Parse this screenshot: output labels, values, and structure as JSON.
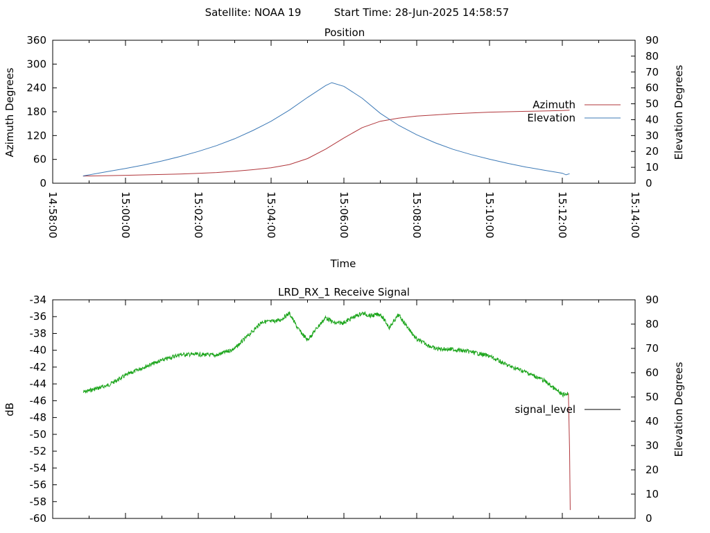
{
  "header": {
    "satellite": "Satellite: NOAA 19",
    "start_time": "Start Time: 28-Jun-2025 14:58:57"
  },
  "colors": {
    "azimuth": "#b0353a",
    "elevation": "#3c79b6",
    "signal": "#1ca51c",
    "drop": "#b0353a"
  },
  "chart_data": [
    {
      "type": "line",
      "title": "Position",
      "xlabel": "Time",
      "ylabel": "Azimuth Degrees",
      "y2label": "Elevation Degrees",
      "xlim": [
        "14:58:00",
        "15:14:00"
      ],
      "xticks": [
        "14:58:00",
        "15:00:00",
        "15:02:00",
        "15:04:00",
        "15:06:00",
        "15:08:00",
        "15:10:00",
        "15:12:00",
        "15:14:00"
      ],
      "ylim": [
        0,
        360
      ],
      "yticks": [
        "0",
        "60",
        "120",
        "180",
        "240",
        "300",
        "360"
      ],
      "y2lim": [
        0,
        90
      ],
      "y2ticks": [
        "0",
        "10",
        "20",
        "30",
        "40",
        "50",
        "60",
        "70",
        "80",
        "90"
      ],
      "legend_position": "right",
      "grid": false,
      "series": [
        {
          "name": "Azimuth",
          "axis": "left",
          "x": [
            "14:58:50",
            "14:59:30",
            "15:00:00",
            "15:00:30",
            "15:01:00",
            "15:01:30",
            "15:02:00",
            "15:02:30",
            "15:03:00",
            "15:03:30",
            "15:04:00",
            "15:04:30",
            "15:05:00",
            "15:05:30",
            "15:06:00",
            "15:06:30",
            "15:07:00",
            "15:07:30",
            "15:08:00",
            "15:08:30",
            "15:09:00",
            "15:09:30",
            "15:10:00",
            "15:10:30",
            "15:11:00",
            "15:11:30",
            "15:12:00",
            "15:12:12"
          ],
          "values": [
            18,
            19,
            20,
            21,
            22,
            23,
            25,
            27,
            30,
            34,
            39,
            47,
            62,
            86,
            114,
            140,
            156,
            164,
            169,
            172,
            175,
            177,
            179,
            180,
            181,
            182,
            183,
            184
          ]
        },
        {
          "name": "Elevation",
          "axis": "right",
          "x": [
            "14:58:50",
            "14:59:30",
            "15:00:00",
            "15:00:30",
            "15:01:00",
            "15:01:30",
            "15:02:00",
            "15:02:30",
            "15:03:00",
            "15:03:30",
            "15:04:00",
            "15:04:30",
            "15:05:00",
            "15:05:30",
            "15:05:40",
            "15:06:00",
            "15:06:30",
            "15:07:00",
            "15:07:30",
            "15:08:00",
            "15:08:30",
            "15:09:00",
            "15:09:30",
            "15:10:00",
            "15:10:30",
            "15:11:00",
            "15:11:30",
            "15:12:00",
            "15:12:06",
            "15:12:12"
          ],
          "values": [
            4.6,
            7.3,
            9.3,
            11.5,
            14.0,
            16.8,
            20.0,
            23.7,
            28.0,
            33.2,
            39.0,
            46.0,
            54.0,
            61.5,
            63.3,
            61.0,
            53.5,
            44.0,
            36.5,
            30.5,
            25.5,
            21.3,
            18.0,
            15.1,
            12.5,
            10.2,
            8.2,
            6.3,
            5.3,
            6.0
          ]
        }
      ]
    },
    {
      "type": "line",
      "title": "LRD_RX_1 Receive Signal",
      "ylabel": "dB",
      "y2label": "Elevation Degrees",
      "ylim": [
        -60,
        -34
      ],
      "yticks": [
        "-34",
        "-36",
        "-38",
        "-40",
        "-42",
        "-44",
        "-46",
        "-48",
        "-50",
        "-52",
        "-54",
        "-56",
        "-58",
        "-60"
      ],
      "y2lim": [
        0,
        90
      ],
      "y2ticks": [
        "0",
        "10",
        "20",
        "30",
        "40",
        "50",
        "60",
        "70",
        "80",
        "90"
      ],
      "xlim": [
        "14:58:00",
        "15:14:00"
      ],
      "legend_position": "right",
      "grid": false,
      "series": [
        {
          "name": "signal_level",
          "axis": "left",
          "x": [
            "14:58:50",
            "14:59:30",
            "15:00:00",
            "15:00:30",
            "15:01:00",
            "15:01:30",
            "15:02:00",
            "15:02:30",
            "15:03:00",
            "15:03:30",
            "15:03:45",
            "15:04:00",
            "15:04:15",
            "15:04:30",
            "15:04:45",
            "15:05:00",
            "15:05:15",
            "15:05:30",
            "15:05:45",
            "15:06:00",
            "15:06:15",
            "15:06:30",
            "15:06:45",
            "15:07:00",
            "15:07:15",
            "15:07:30",
            "15:08:00",
            "15:08:30",
            "15:09:00",
            "15:09:30",
            "15:10:00",
            "15:10:30",
            "15:11:00",
            "15:11:30",
            "15:12:00",
            "15:12:10"
          ],
          "values": [
            -45.0,
            -44.2,
            -43.0,
            -42.0,
            -41.2,
            -40.5,
            -40.5,
            -40.6,
            -39.8,
            -37.7,
            -36.6,
            -36.6,
            -36.4,
            -35.6,
            -37.5,
            -38.8,
            -37.4,
            -36.1,
            -36.8,
            -36.7,
            -36.1,
            -35.6,
            -35.9,
            -35.7,
            -37.3,
            -35.8,
            -38.7,
            -39.8,
            -39.9,
            -40.2,
            -40.7,
            -41.8,
            -42.6,
            -43.6,
            -45.3,
            -45.1
          ]
        }
      ],
      "drop": {
        "x": [
          "15:12:10",
          "15:12:12",
          "15:12:13"
        ],
        "values": [
          -45.1,
          -52.0,
          -59.0
        ]
      }
    }
  ],
  "legend": {
    "azimuth": "Azimuth",
    "elevation": "Elevation",
    "signal": "signal_level"
  }
}
